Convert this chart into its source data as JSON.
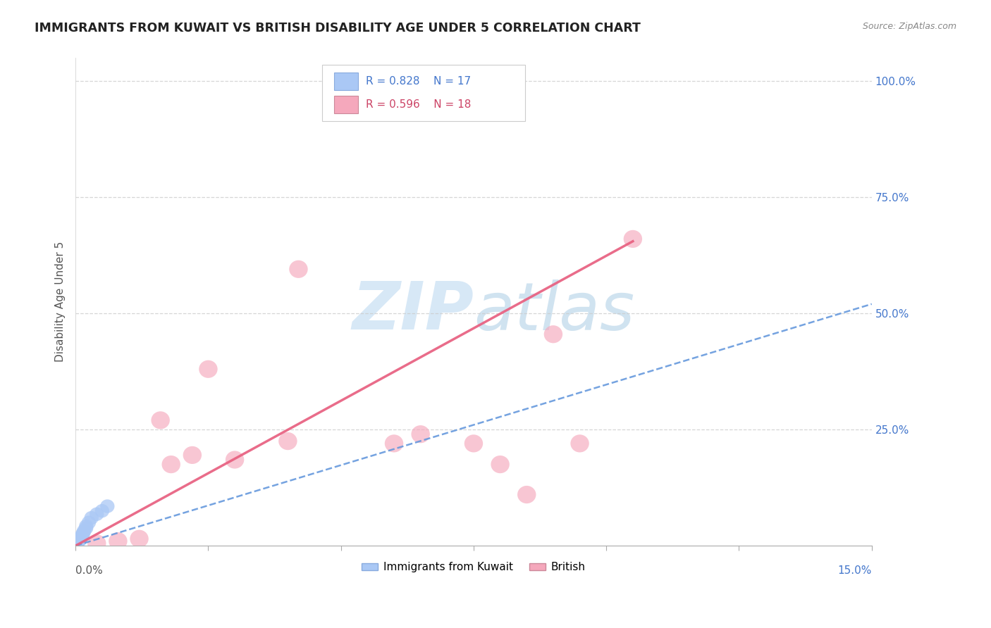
{
  "title": "IMMIGRANTS FROM KUWAIT VS BRITISH DISABILITY AGE UNDER 5 CORRELATION CHART",
  "source": "Source: ZipAtlas.com",
  "ylabel": "Disability Age Under 5",
  "legend_label1": "Immigrants from Kuwait",
  "legend_label2": "British",
  "r1": 0.828,
  "n1": 17,
  "r2": 0.596,
  "n2": 18,
  "color1": "#aac8f5",
  "color2": "#f5a8bc",
  "trendline1_color": "#6699dd",
  "trendline2_color": "#e86080",
  "watermark_color": "#d0e4f5",
  "right_ytick_vals": [
    1.0,
    0.75,
    0.5,
    0.25
  ],
  "right_ytick_labels": [
    "100.0%",
    "75.0%",
    "50.0%",
    "25.0%"
  ],
  "xmin": 0.0,
  "xmax": 0.15,
  "ymin": 0.0,
  "ymax": 1.05,
  "blue_x": [
    0.0002,
    0.0004,
    0.0006,
    0.0008,
    0.001,
    0.001,
    0.0012,
    0.0013,
    0.0015,
    0.0016,
    0.002,
    0.002,
    0.0025,
    0.003,
    0.004,
    0.005,
    0.006
  ],
  "blue_y": [
    0.005,
    0.008,
    0.01,
    0.012,
    0.015,
    0.018,
    0.02,
    0.025,
    0.028,
    0.032,
    0.038,
    0.042,
    0.05,
    0.06,
    0.068,
    0.075,
    0.085
  ],
  "pink_x": [
    0.004,
    0.008,
    0.012,
    0.016,
    0.018,
    0.022,
    0.025,
    0.03,
    0.04,
    0.042,
    0.06,
    0.065,
    0.075,
    0.08,
    0.085,
    0.09,
    0.095,
    0.105
  ],
  "pink_y": [
    0.005,
    0.01,
    0.015,
    0.27,
    0.175,
    0.195,
    0.38,
    0.185,
    0.225,
    0.595,
    0.22,
    0.24,
    0.22,
    0.175,
    0.11,
    0.455,
    0.22,
    0.66
  ],
  "blue_trend_x0": 0.0,
  "blue_trend_x1": 0.15,
  "blue_trend_y0": 0.0,
  "blue_trend_y1": 0.52,
  "pink_trend_x0": 0.0,
  "pink_trend_x1": 0.105,
  "pink_trend_y0": 0.0,
  "pink_trend_y1": 0.655,
  "grid_color": "#cccccc",
  "grid_style": "--",
  "title_color": "#222222",
  "source_color": "#888888",
  "axis_label_color": "#555555",
  "right_tick_color": "#4477cc"
}
